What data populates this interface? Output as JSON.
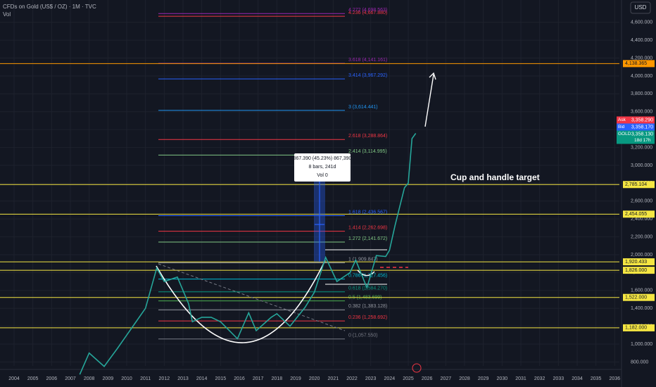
{
  "chart_data": {
    "type": "line",
    "title": "CFDs on Gold (US$ / OZ) · 1M · TVC",
    "subtitle": "Vol",
    "currency": "USD",
    "annotation": "Cup and handle target",
    "measure": [
      "867.390 (45.23%) 867,390",
      "8 bars, 241d",
      "Vol 0"
    ],
    "x": [
      2007.5,
      2008.0,
      2008.8,
      2009.5,
      2010.0,
      2010.5,
      2011.0,
      2011.6,
      2012.0,
      2012.7,
      2013.3,
      2013.5,
      2014.0,
      2014.5,
      2015.0,
      2015.9,
      2016.5,
      2016.9,
      2017.7,
      2018.0,
      2018.7,
      2019.5,
      2020.0,
      2020.6,
      2021.2,
      2021.9,
      2022.2,
      2022.8,
      2023.3,
      2023.8,
      2024.0,
      2024.3,
      2024.8,
      2025.0,
      2025.2,
      2025.4
    ],
    "series": [
      {
        "name": "GOLD",
        "color": "#26a69a",
        "values": [
          660,
          900,
          750,
          950,
          1100,
          1250,
          1400,
          1850,
          1700,
          1750,
          1450,
          1250,
          1300,
          1300,
          1250,
          1060,
          1350,
          1150,
          1300,
          1340,
          1200,
          1410,
          1580,
          1970,
          1700,
          1800,
          1940,
          1630,
          1990,
          1980,
          2050,
          2330,
          2750,
          2800,
          3300,
          3358.13
        ]
      }
    ],
    "xlim": [
      2003.25,
      2036.25
    ],
    "xticks": [
      2004,
      2005,
      2006,
      2007,
      2008,
      2009,
      2010,
      2011,
      2012,
      2013,
      2014,
      2015,
      2016,
      2017,
      2018,
      2019,
      2020,
      2021,
      2022,
      2023,
      2024,
      2025,
      2026,
      2027,
      2028,
      2029,
      2030,
      2031,
      2032,
      2033,
      2034,
      2035,
      2036
    ],
    "ylim": [
      756,
      4850
    ],
    "yticks": [
      {
        "value": 800,
        "label": "800.000"
      },
      {
        "value": 1000,
        "label": "1,000.000"
      },
      {
        "value": 1200,
        "label": "1,200.000"
      },
      {
        "value": 1400,
        "label": "1,400.000"
      },
      {
        "value": 1600,
        "label": "1,600.000"
      },
      {
        "value": 1800,
        "label": "1,800.000"
      },
      {
        "value": 2000,
        "label": "2,000.000"
      },
      {
        "value": 2200,
        "label": "2,200.000"
      },
      {
        "value": 2400,
        "label": "2,400.000"
      },
      {
        "value": 2600,
        "label": "2,600.000"
      },
      {
        "value": 2800,
        "label": "2,800.000"
      },
      {
        "value": 3000,
        "label": "3,000.000"
      },
      {
        "value": 3200,
        "label": "3,200.000"
      },
      {
        "value": 3400,
        "label": "3,400.000"
      },
      {
        "value": 3600,
        "label": "3,600.000"
      },
      {
        "value": 3800,
        "label": "3,800.000"
      },
      {
        "value": 4000,
        "label": "4,000.000"
      },
      {
        "value": 4200,
        "label": "4,200.000"
      },
      {
        "value": 4400,
        "label": "4,400.000"
      },
      {
        "value": 4600,
        "label": "4,600.000"
      }
    ],
    "grid": true,
    "fib_levels": [
      {
        "value": 1057.55,
        "label": "0 (1,057.550)",
        "color": "#787b86"
      },
      {
        "value": 1258.692,
        "label": "0.236 (1,258.692)",
        "color": "#f23645"
      },
      {
        "value": 1383.128,
        "label": "0.382 (1,383.128)",
        "color": "#9598a1"
      },
      {
        "value": 1483.699,
        "label": "0.5 (1,483.699)",
        "color": "#4caf50"
      },
      {
        "value": 1584.27,
        "label": "0.618 (1,584.270)",
        "color": "#089981"
      },
      {
        "value": 1727.456,
        "label": "0.786 (1,727.456)",
        "color": "#00bcd4"
      },
      {
        "value": 1909.847,
        "label": "1 (1,909.847)",
        "color": "#9598a1"
      },
      {
        "value": 2141.672,
        "label": "1.272 (2,141.672)",
        "color": "#81c784"
      },
      {
        "value": 2262.698,
        "label": "1.414 (2,262.698)",
        "color": "#f23645"
      },
      {
        "value": 2436.567,
        "label": "1.618 (2,436.567)",
        "color": "#2962ff"
      },
      {
        "value": 3114.995,
        "label": "2.414 (3,114.995)",
        "color": "#81c784"
      },
      {
        "value": 3288.864,
        "label": "2.618 (3,288.864)",
        "color": "#f23645"
      },
      {
        "value": 3614.441,
        "label": "3 (3,614.441)",
        "color": "#2196f3"
      },
      {
        "value": 3967.292,
        "label": "3.414 (3,967.292)",
        "color": "#2962ff"
      },
      {
        "value": 4141.161,
        "label": "3.618 (4,141.161)",
        "color": "#9c27b0"
      },
      {
        "value": 4667.88,
        "label": "4.236 (4,667.880)",
        "color": "#f23645"
      },
      {
        "value": 4698.563,
        "label": "4.272 (4,698.563)",
        "color": "#9c27b0"
      }
    ],
    "h_levels": [
      {
        "value": 4138.365,
        "label": "4,138.365",
        "color": "#ff9800"
      },
      {
        "value": 2785.104,
        "label": "2,785.104",
        "color": "#f5e642"
      },
      {
        "value": 2454.055,
        "label": "2,454.055",
        "color": "#f5e642"
      },
      {
        "value": 1920.433,
        "label": "1,920.433",
        "color": "#f5e642"
      },
      {
        "value": 1826,
        "label": "1,826.000",
        "color": "#f5e642"
      },
      {
        "value": 1522,
        "label": "1,522.000",
        "color": "#f5e642"
      },
      {
        "value": 1182,
        "label": "1,182.000",
        "color": "#f5e642"
      }
    ],
    "price_tags": [
      {
        "name": "Ask",
        "label": "3,358.290",
        "color": "#f23645"
      },
      {
        "name": "Bid",
        "label": "3,358.170",
        "color": "#2962ff"
      },
      {
        "name": "GOLD",
        "label": "3,358.130",
        "color": "#089981",
        "extra": "18d 17h"
      }
    ]
  }
}
